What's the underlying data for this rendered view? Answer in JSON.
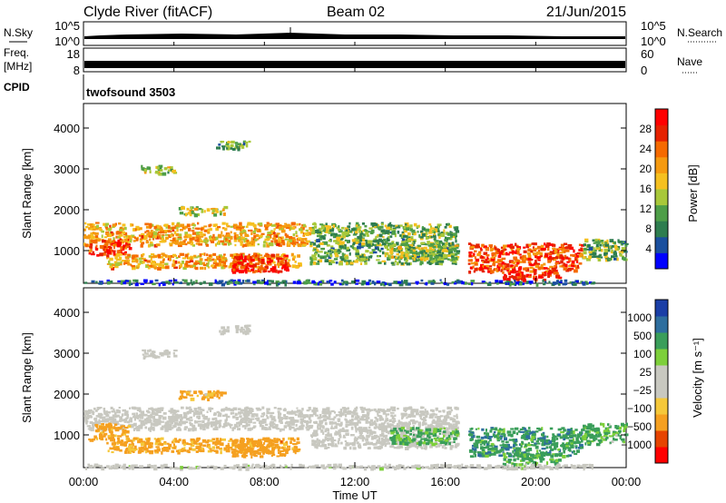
{
  "header": {
    "station": "Clyde River (fitACF)",
    "beam": "Beam 02",
    "date": "21/Jun/2015"
  },
  "strips": {
    "nsky_label": "N.Sky",
    "freq_label_line1": "Freq.",
    "freq_label_line2": "[MHz]",
    "cpid_label": "CPID",
    "nsearch_label": "N.Search",
    "nave_label": "Nave",
    "cpid_text": "twofsound 3503",
    "nsky_ticks": [
      "10^5",
      "10^0"
    ],
    "freq_ticks": [
      "18",
      "8"
    ],
    "nave_ticks": [
      "60",
      "0"
    ]
  },
  "x_ticks": [
    "00:00",
    "04:00",
    "08:00",
    "12:00",
    "16:00",
    "20:00",
    "00:00"
  ],
  "xlabel": "Time UT",
  "panels": {
    "power": {
      "ylabel": "Slant Range [km]",
      "cbar_label": "Power [dB]",
      "cbar_ticks": [
        "28",
        "24",
        "20",
        "16",
        "12",
        "8",
        "4"
      ],
      "colors": [
        "#0000ff",
        "#1a4f9e",
        "#2e7d4f",
        "#4e9e48",
        "#a8c83a",
        "#f5c020",
        "#f59a10",
        "#f56a00",
        "#e62200",
        "#ff0000"
      ]
    },
    "velocity": {
      "ylabel": "Slant Range [km]",
      "cbar_label": "Velocity [m s⁻¹]",
      "cbar_ticks": [
        "1000",
        "500",
        "100",
        "25",
        "−25",
        "−100",
        "−500",
        "−1000"
      ],
      "colors": [
        "#ff0000",
        "#e64400",
        "#f5a020",
        "#f5c83a",
        "#c8c8c0",
        "#c8c8c0",
        "#7dcf3a",
        "#3a9e5a",
        "#2e6e9e",
        "#1a3ea6"
      ]
    }
  },
  "chart_data": {
    "type": "heatmap",
    "x_unit": "UT hours",
    "xlim": [
      0,
      24
    ],
    "ylim": [
      200,
      4600
    ],
    "y_ticks": [
      1000,
      2000,
      3000,
      4000
    ],
    "patches": [
      {
        "t0": 0.0,
        "t1": 10.0,
        "r0": 1150,
        "r1": 1700,
        "power": 20,
        "velocity": 0
      },
      {
        "t0": 0.2,
        "t1": 2.0,
        "r0": 900,
        "r1": 1300,
        "power": 27,
        "velocity": -200
      },
      {
        "t0": 1.0,
        "t1": 9.5,
        "r0": 600,
        "r1": 950,
        "power": 20,
        "velocity": -150
      },
      {
        "t0": 6.5,
        "t1": 9.0,
        "r0": 500,
        "r1": 950,
        "power": 28,
        "velocity": -250
      },
      {
        "t0": 10.0,
        "t1": 16.5,
        "r0": 700,
        "r1": 1700,
        "power": 12,
        "velocity": 0
      },
      {
        "t0": 13.5,
        "t1": 16.5,
        "r0": 800,
        "r1": 1200,
        "power": 14,
        "velocity": 200
      },
      {
        "t0": 2.5,
        "t1": 4.0,
        "r0": 2900,
        "r1": 3100,
        "power": 14,
        "velocity": 0
      },
      {
        "t0": 5.8,
        "t1": 7.3,
        "r0": 3500,
        "r1": 3700,
        "power": 12,
        "velocity": 0
      },
      {
        "t0": 4.2,
        "t1": 6.2,
        "r0": 1900,
        "r1": 2100,
        "power": 16,
        "velocity": -120
      },
      {
        "t0": 17.0,
        "t1": 22.0,
        "r0": 500,
        "r1": 1200,
        "power": 26,
        "velocity": 300
      },
      {
        "t0": 18.5,
        "t1": 21.0,
        "r0": 300,
        "r1": 600,
        "power": 28,
        "velocity": 200
      },
      {
        "t0": 22.0,
        "t1": 24.0,
        "r0": 800,
        "r1": 1300,
        "power": 12,
        "velocity": 150
      },
      {
        "t0": 0.0,
        "t1": 22.5,
        "r0": 200,
        "r1": 300,
        "power": 6,
        "velocity": 25
      }
    ]
  }
}
